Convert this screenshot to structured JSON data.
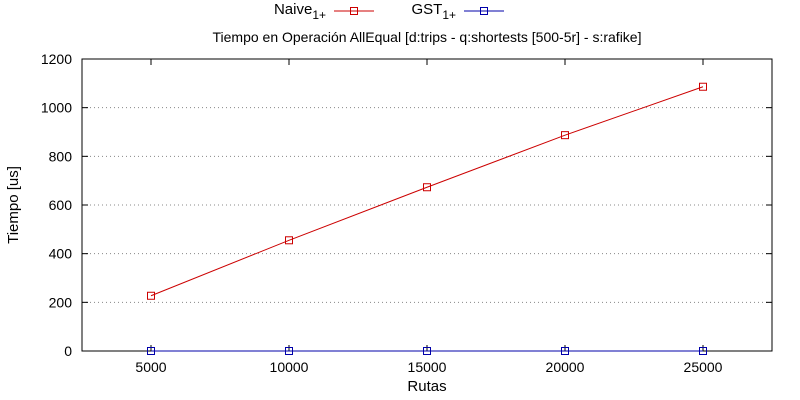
{
  "chart_data": {
    "type": "line",
    "title": "Tiempo en Operación AllEqual [d:trips - q:shortests [500-5r] - s:rafike]",
    "xlabel": "Rutas",
    "ylabel": "Tiempo [us]",
    "xlim": [
      2500,
      27500
    ],
    "ylim": [
      0,
      1200
    ],
    "xticks": [
      5000,
      10000,
      15000,
      20000,
      25000
    ],
    "yticks": [
      0,
      200,
      400,
      600,
      800,
      1000,
      1200
    ],
    "grid": "horizontal dotted",
    "legend_position": "top-center",
    "series": [
      {
        "name": "Naive",
        "subscript": "1+",
        "color": "#cc0000",
        "marker": "square-open",
        "x": [
          5000,
          10000,
          15000,
          20000,
          25000
        ],
        "y": [
          227,
          455,
          673,
          887,
          1086
        ]
      },
      {
        "name": "GST",
        "subscript": "1+",
        "color": "#0000aa",
        "marker": "square-open",
        "x": [
          5000,
          10000,
          15000,
          20000,
          25000
        ],
        "y": [
          0,
          0,
          0,
          0,
          0
        ]
      }
    ]
  }
}
